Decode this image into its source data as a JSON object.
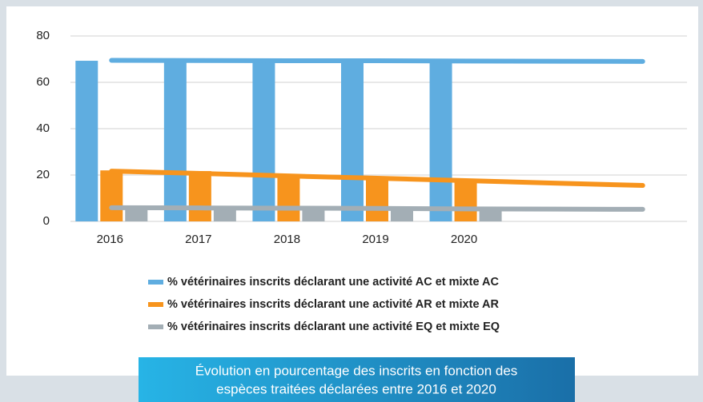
{
  "chart_data": {
    "type": "bar",
    "categories": [
      "2016",
      "2017",
      "2018",
      "2019",
      "2020",
      null,
      null
    ],
    "series": [
      {
        "name": "% vétérinaires inscrits déclarant une activité AC et mixte AC",
        "color": "#5fade0",
        "values": [
          69.3,
          69,
          69,
          69,
          69,
          null,
          null
        ],
        "trend": [
          69.5,
          69.4,
          69.3,
          69.3,
          69.2,
          69.1,
          69.0
        ]
      },
      {
        "name": "% vétérinaires inscrits déclarant une activité AR et mixte AR",
        "color": "#f7941d",
        "values": [
          22,
          21.7,
          19.3,
          18.6,
          17.6,
          null,
          null
        ],
        "trend": [
          21.7,
          20.7,
          19.6,
          18.6,
          17.6,
          16.5,
          15.5
        ]
      },
      {
        "name": "% vétérinaires inscrits déclarant une activité EQ et mixte EQ",
        "color": "#a3aeb5",
        "values": [
          6.5,
          6.3,
          6.2,
          6.1,
          6.0,
          null,
          null
        ],
        "trend": [
          5.9,
          5.8,
          5.7,
          5.6,
          5.4,
          5.3,
          5.2
        ]
      }
    ],
    "ylim": [
      0,
      80
    ],
    "yticks": [
      0,
      20,
      40,
      60,
      80
    ],
    "grid": true,
    "caption": [
      "Évolution en pourcentage des inscrits en fonction des",
      "espèces traitées déclarées entre 2016 et 2020"
    ]
  }
}
